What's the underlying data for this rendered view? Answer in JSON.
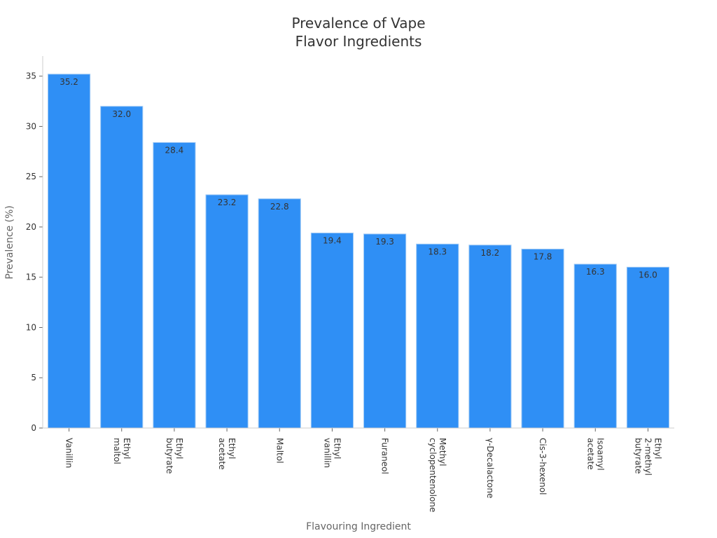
{
  "chart_data": {
    "type": "bar",
    "title_lines": [
      "Prevalence of Vape",
      "Flavor Ingredients"
    ],
    "xlabel": "Flavouring Ingredient",
    "ylabel": "Prevalence (%)",
    "ylim": [
      0,
      37
    ],
    "yticks": [
      0,
      5,
      10,
      15,
      20,
      25,
      30,
      35
    ],
    "grid": false,
    "legend": "none",
    "bar_color": "#2f8ff5",
    "bar_stroke": "#9fc9f5",
    "categories": [
      [
        "Vanillin"
      ],
      [
        "Ethyl",
        "maltol"
      ],
      [
        "Ethyl",
        "butyrate"
      ],
      [
        "Ethyl",
        "acetate"
      ],
      [
        "Maltol"
      ],
      [
        "Ethyl",
        "vanillin"
      ],
      [
        "Furaneol"
      ],
      [
        "Methyl",
        "cyclopentenolone"
      ],
      [
        "γ-Decalactone"
      ],
      [
        "Cis-3-hexenol"
      ],
      [
        "Isoamyl",
        "acetate"
      ],
      [
        "Ethyl",
        "2-methyl",
        "butyrate"
      ]
    ],
    "values": [
      35.2,
      32.0,
      28.4,
      23.2,
      22.8,
      19.4,
      19.3,
      18.3,
      18.2,
      17.8,
      16.3,
      16.0
    ],
    "data_labels": [
      "35.2",
      "32.0",
      "28.4",
      "23.2",
      "22.8",
      "19.4",
      "19.3",
      "18.3",
      "18.2",
      "17.8",
      "16.3",
      "16.0"
    ]
  }
}
